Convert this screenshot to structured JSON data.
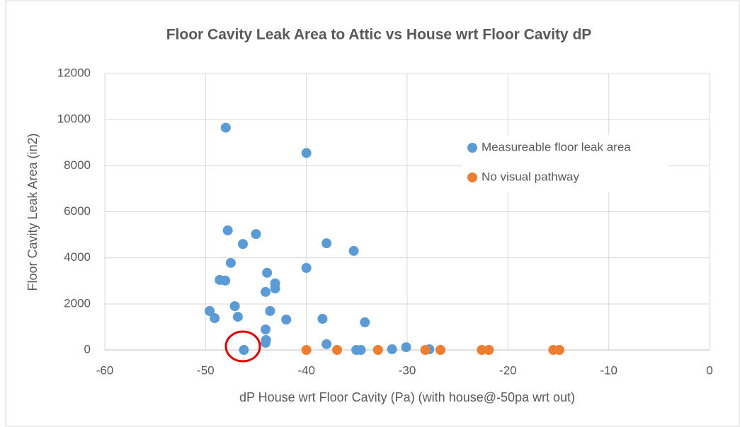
{
  "chart_data": {
    "type": "scatter",
    "title": "Floor Cavity Leak Area to Attic vs House wrt Floor Cavity dP",
    "x_label": "dP House wrt Floor Cavity (Pa)  (with house@-50pa wrt out)",
    "y_label": "Floor Cavity Leak Area (in2)",
    "xlim": [
      -60,
      0
    ],
    "xticks": [
      -60,
      -50,
      -40,
      -30,
      -20,
      -10,
      0
    ],
    "ylim": [
      0,
      12000
    ],
    "yticks": [
      0,
      2000,
      4000,
      6000,
      8000,
      10000,
      12000
    ],
    "grid": true,
    "legend": "upper right",
    "series": [
      {
        "name": "Measureable floor leak area",
        "color": "#5b9bd5",
        "x": [
          -48,
          -40,
          -47.8,
          -45,
          -46.3,
          -38,
          -35.3,
          -47.5,
          -40,
          -43.9,
          -48.6,
          -48.05,
          -43.1,
          -43.1,
          -44.05,
          -47.1,
          -49.6,
          -43.6,
          -46.8,
          -49.1,
          -42,
          -38.4,
          -34.2,
          -44.05,
          -44,
          -44.05,
          -38,
          -46.2,
          -35.05,
          -34.6,
          -31.5,
          -30.1,
          -27.8
        ],
        "values": [
          9650,
          8550,
          5190,
          5030,
          4600,
          4630,
          4300,
          3780,
          3560,
          3350,
          3040,
          3010,
          2890,
          2670,
          2520,
          1900,
          1690,
          1690,
          1440,
          1380,
          1320,
          1350,
          1200,
          890,
          430,
          310,
          250,
          0,
          0,
          0,
          30,
          120,
          30
        ]
      },
      {
        "name": "No visual pathway",
        "color": "#ed7d31",
        "x": [
          -40,
          -36.95,
          -32.9,
          -28.2,
          -26.7,
          -22.6,
          -21.9,
          -15.5,
          -14.9
        ],
        "values": [
          0,
          0,
          0,
          0,
          0,
          0,
          0,
          0,
          0
        ]
      }
    ]
  }
}
